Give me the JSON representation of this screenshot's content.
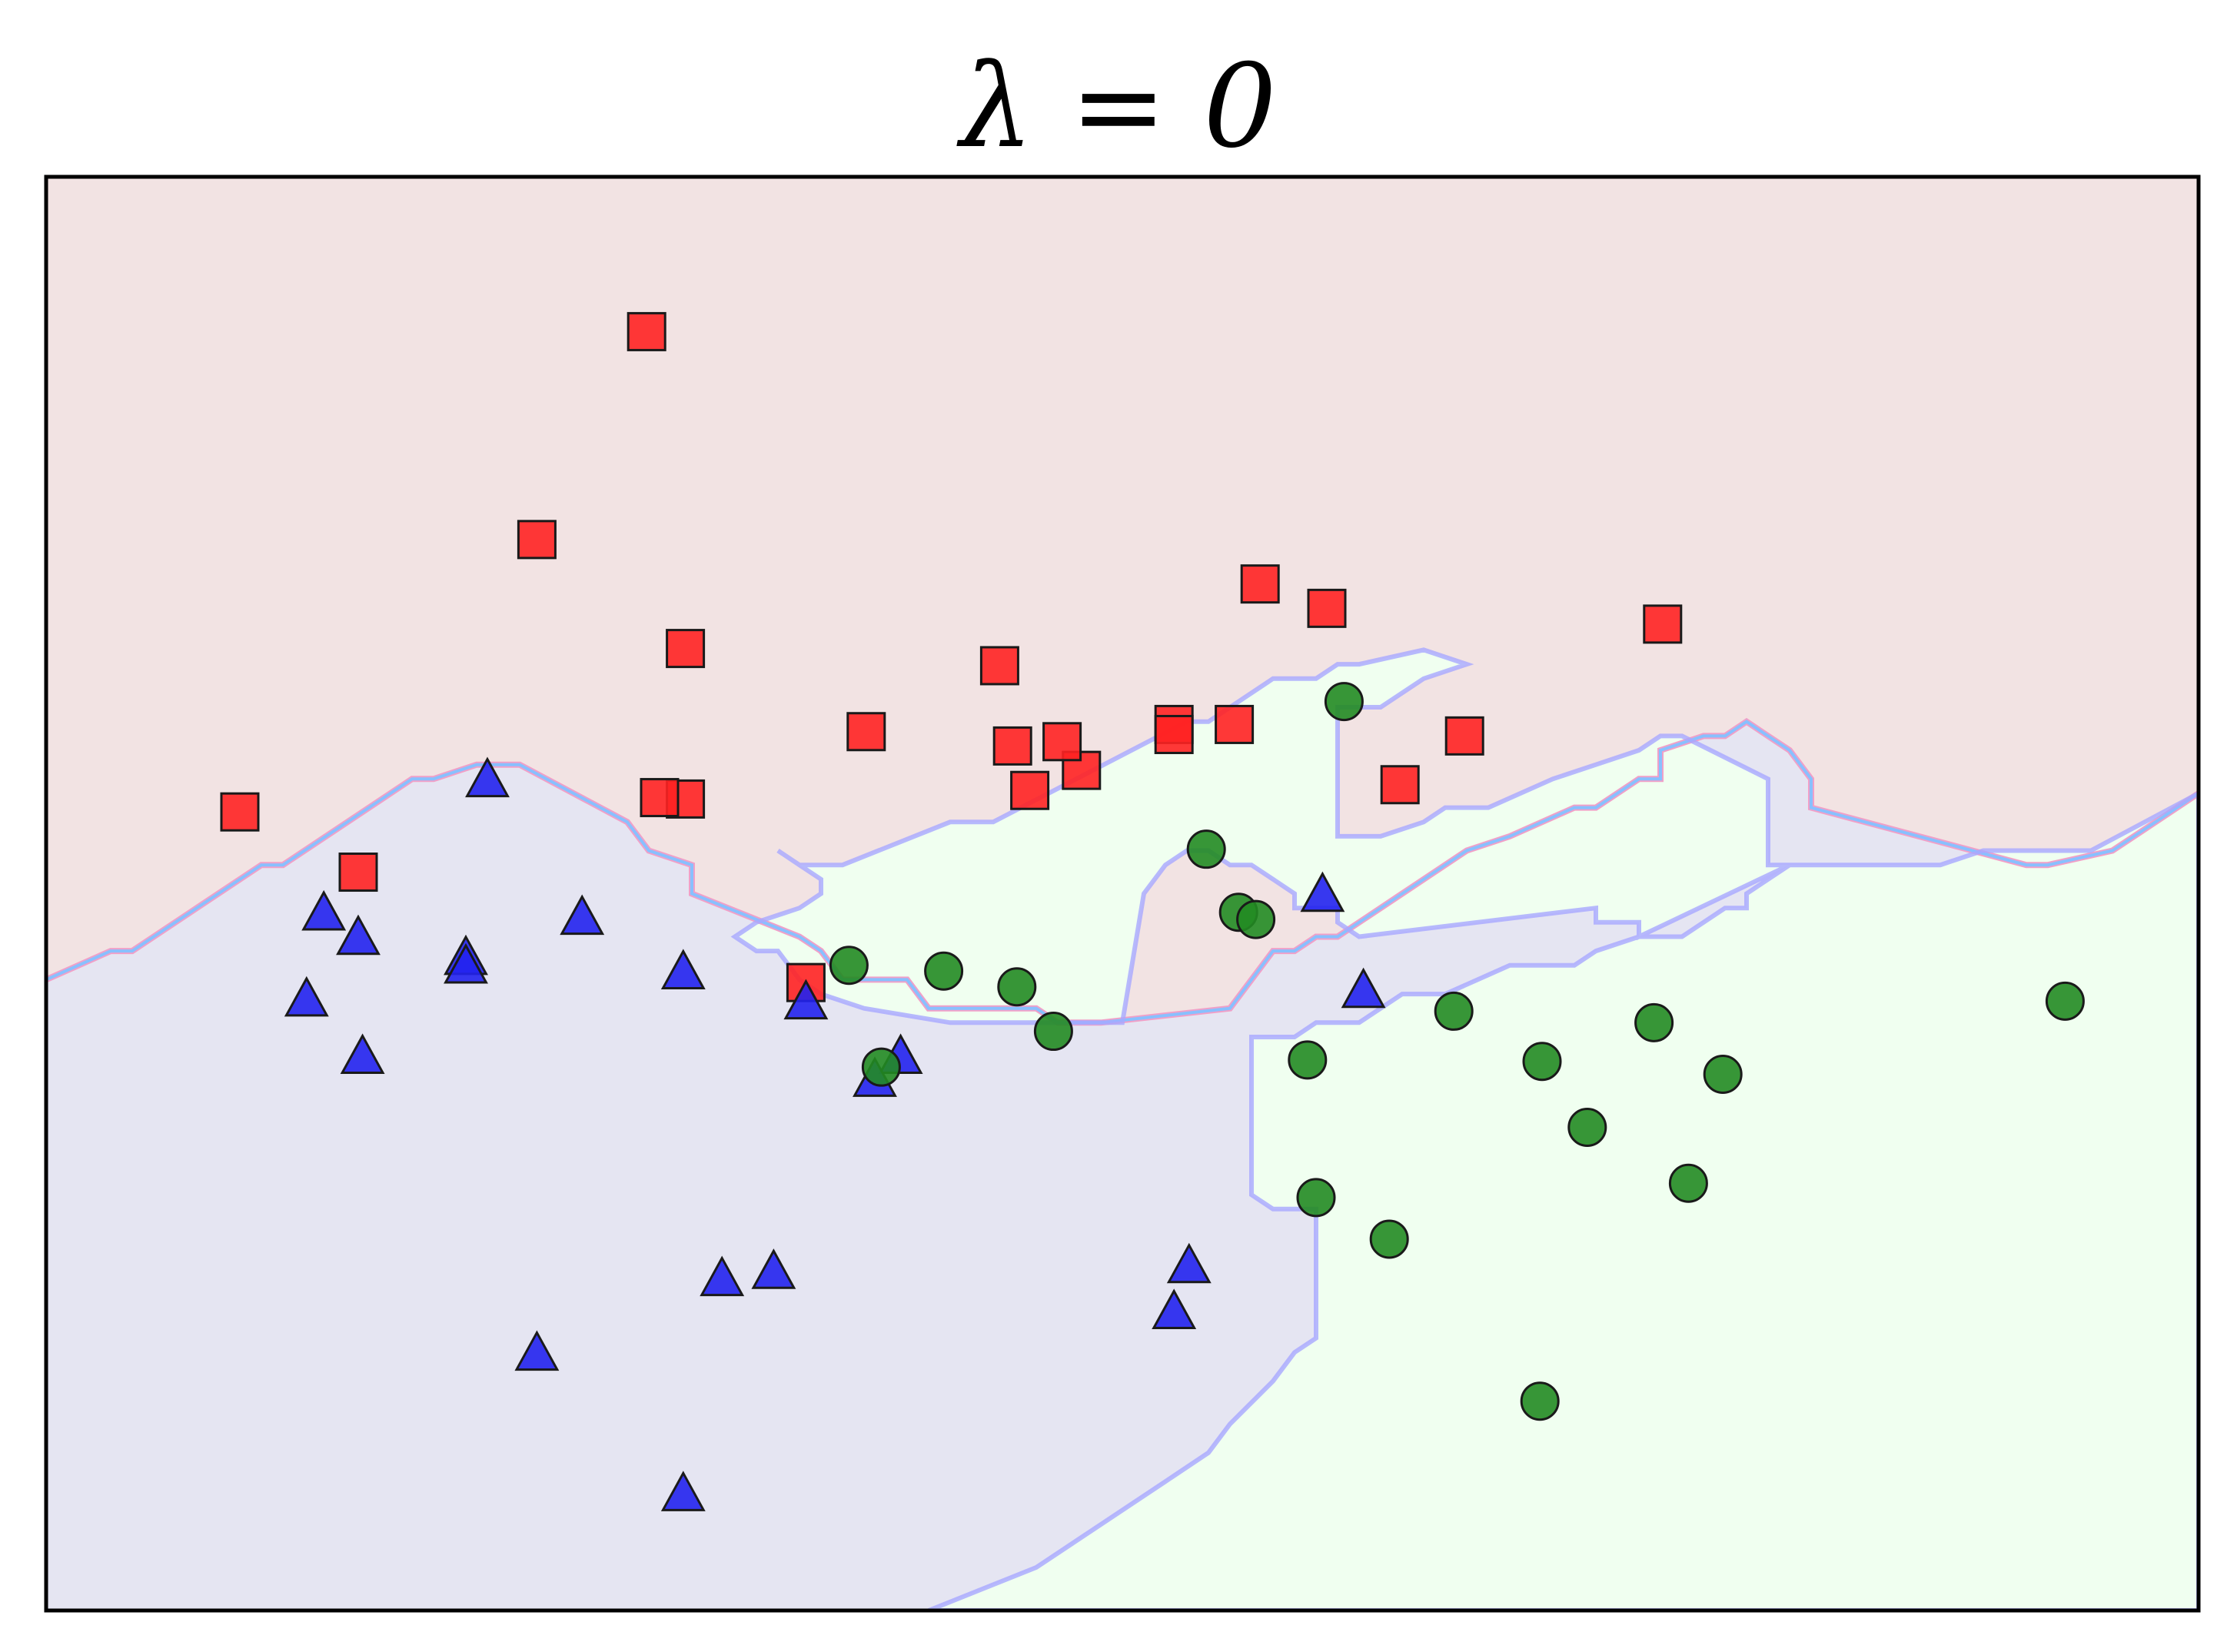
{
  "chart_data": {
    "type": "scatter",
    "title": "λ = 0",
    "xlabel": "",
    "ylabel": "",
    "xlim": [
      0,
      100
    ],
    "ylim": [
      0,
      100
    ],
    "grid": false,
    "legend": "none",
    "axis_ticks": false,
    "decision_regions": {
      "description_classes": [
        "red-region",
        "blue-region",
        "green-region"
      ],
      "colors": {
        "red": "#f2e3e3",
        "blue": "#e5e5f2",
        "green": "#f0fff0"
      },
      "red_blue_boundary": [
        [
          0,
          44
        ],
        [
          3,
          46
        ],
        [
          4,
          46
        ],
        [
          10,
          52
        ],
        [
          11,
          52
        ],
        [
          17,
          58
        ],
        [
          18,
          58
        ],
        [
          20,
          59
        ],
        [
          22,
          59
        ],
        [
          27,
          55
        ],
        [
          28,
          53
        ],
        [
          30,
          52
        ],
        [
          30,
          50
        ],
        [
          35,
          47
        ],
        [
          36,
          46
        ],
        [
          37,
          44
        ],
        [
          39,
          44
        ],
        [
          40,
          44
        ],
        [
          41,
          42
        ],
        [
          46,
          42
        ],
        [
          47,
          41
        ],
        [
          49,
          41
        ],
        [
          55,
          42
        ],
        [
          57,
          46
        ],
        [
          58,
          46
        ],
        [
          59,
          47
        ],
        [
          60,
          47
        ],
        [
          63,
          50
        ],
        [
          66,
          53
        ],
        [
          68,
          54
        ],
        [
          71,
          56
        ],
        [
          72,
          56
        ],
        [
          74,
          58
        ],
        [
          75,
          58
        ],
        [
          75,
          60
        ],
        [
          77,
          61
        ],
        [
          78,
          61
        ],
        [
          79,
          62
        ],
        [
          80,
          61
        ],
        [
          81,
          60
        ],
        [
          82,
          58
        ],
        [
          82,
          56
        ],
        [
          92,
          52
        ],
        [
          93,
          52
        ],
        [
          96,
          53
        ],
        [
          98,
          55
        ],
        [
          100,
          57
        ]
      ],
      "green_region_outline": [
        [
          34,
          53
        ],
        [
          35,
          52
        ],
        [
          37,
          52
        ],
        [
          42,
          55
        ],
        [
          44,
          55
        ],
        [
          53,
          62
        ],
        [
          54,
          62
        ],
        [
          57,
          65
        ],
        [
          59,
          65
        ],
        [
          60,
          66
        ],
        [
          61,
          66
        ],
        [
          64,
          67
        ],
        [
          66,
          66
        ],
        [
          64,
          65
        ],
        [
          62,
          63
        ],
        [
          60,
          63
        ],
        [
          60,
          54
        ],
        [
          62,
          54
        ],
        [
          64,
          55
        ],
        [
          65,
          56
        ],
        [
          67,
          56
        ],
        [
          70,
          58
        ],
        [
          72,
          59
        ],
        [
          74,
          60
        ],
        [
          75,
          61
        ],
        [
          76,
          61
        ],
        [
          80,
          58
        ],
        [
          80,
          52
        ],
        [
          81,
          52
        ],
        [
          88,
          52
        ],
        [
          90,
          53
        ],
        [
          95,
          53
        ],
        [
          100,
          57
        ],
        [
          100,
          0
        ],
        [
          41,
          0
        ],
        [
          46,
          3
        ],
        [
          49,
          6
        ],
        [
          52,
          9
        ],
        [
          54,
          11
        ],
        [
          55,
          13
        ],
        [
          57,
          16
        ],
        [
          58,
          18
        ],
        [
          59,
          19
        ],
        [
          59,
          28
        ],
        [
          57,
          28
        ],
        [
          56,
          29
        ],
        [
          56,
          40
        ],
        [
          58,
          40
        ],
        [
          59,
          41
        ],
        [
          61,
          41
        ],
        [
          63,
          43
        ],
        [
          65,
          43
        ],
        [
          68,
          45
        ],
        [
          71,
          45
        ],
        [
          72,
          46
        ],
        [
          74,
          47
        ],
        [
          76,
          47
        ],
        [
          78,
          49
        ],
        [
          79,
          49
        ],
        [
          79,
          50
        ],
        [
          81,
          52
        ],
        [
          81,
          52
        ],
        [
          74,
          47
        ],
        [
          74,
          48
        ],
        [
          72,
          48
        ],
        [
          72,
          49
        ],
        [
          61,
          47
        ],
        [
          60,
          48
        ],
        [
          60,
          49
        ],
        [
          58,
          49
        ],
        [
          58,
          50
        ],
        [
          57,
          51
        ],
        [
          56,
          52
        ],
        [
          55,
          52
        ],
        [
          54,
          53
        ],
        [
          53,
          53
        ],
        [
          52,
          52
        ],
        [
          51,
          50
        ],
        [
          50,
          41
        ],
        [
          42,
          41
        ],
        [
          38,
          42
        ],
        [
          36,
          43
        ],
        [
          35,
          44
        ],
        [
          34,
          46
        ],
        [
          33,
          46
        ],
        [
          32,
          47
        ],
        [
          33,
          48
        ],
        [
          35,
          49
        ],
        [
          36,
          50
        ],
        [
          36,
          51
        ],
        [
          35,
          52
        ],
        [
          34,
          53
        ]
      ]
    },
    "series": [
      {
        "marker": "square",
        "color": "#ff2222",
        "points": [
          [
            27.9,
            89.2
          ],
          [
            22.8,
            74.7
          ],
          [
            29.7,
            67.1
          ],
          [
            38.1,
            61.3
          ],
          [
            29.7,
            56.6
          ],
          [
            44.3,
            65.9
          ],
          [
            45.7,
            57.2
          ],
          [
            48.1,
            58.6
          ],
          [
            44.9,
            60.3
          ],
          [
            47.2,
            60.6
          ],
          [
            55.2,
            61.8
          ],
          [
            52.4,
            61.8
          ],
          [
            52.4,
            61.1
          ],
          [
            56.4,
            71.6
          ],
          [
            59.5,
            69.9
          ],
          [
            75.1,
            68.8
          ],
          [
            65.9,
            61.0
          ],
          [
            62.9,
            57.6
          ],
          [
            14.5,
            51.5
          ],
          [
            9.0,
            55.7
          ],
          [
            28.5,
            56.7
          ],
          [
            35.3,
            43.8
          ]
        ]
      },
      {
        "marker": "triangle",
        "color": "#2222ee",
        "points": [
          [
            20.5,
            57.9
          ],
          [
            12.9,
            48.6
          ],
          [
            14.5,
            46.9
          ],
          [
            19.5,
            45.5
          ],
          [
            19.5,
            44.9
          ],
          [
            24.9,
            48.3
          ],
          [
            29.6,
            44.5
          ],
          [
            12.1,
            42.6
          ],
          [
            14.7,
            38.6
          ],
          [
            35.3,
            42.4
          ],
          [
            39.7,
            38.6
          ],
          [
            38.5,
            37.0
          ],
          [
            59.3,
            49.9
          ],
          [
            61.2,
            43.2
          ],
          [
            31.4,
            23.1
          ],
          [
            33.8,
            23.6
          ],
          [
            22.8,
            17.9
          ],
          [
            53.1,
            24.0
          ],
          [
            52.4,
            20.8
          ],
          [
            29.6,
            8.1
          ]
        ]
      },
      {
        "marker": "circle",
        "color": "#228b22",
        "points": [
          [
            37.3,
            45.0
          ],
          [
            41.7,
            44.6
          ],
          [
            45.1,
            43.5
          ],
          [
            46.8,
            40.4
          ],
          [
            38.8,
            37.9
          ],
          [
            60.3,
            63.4
          ],
          [
            53.9,
            53.1
          ],
          [
            55.4,
            48.7
          ],
          [
            56.2,
            48.2
          ],
          [
            58.6,
            38.4
          ],
          [
            59.0,
            28.8
          ],
          [
            62.4,
            25.9
          ],
          [
            65.4,
            41.8
          ],
          [
            69.5,
            38.3
          ],
          [
            71.6,
            33.7
          ],
          [
            74.7,
            41.0
          ],
          [
            77.9,
            37.4
          ],
          [
            76.3,
            29.8
          ],
          [
            93.8,
            42.5
          ],
          [
            69.4,
            14.6
          ]
        ]
      }
    ]
  }
}
